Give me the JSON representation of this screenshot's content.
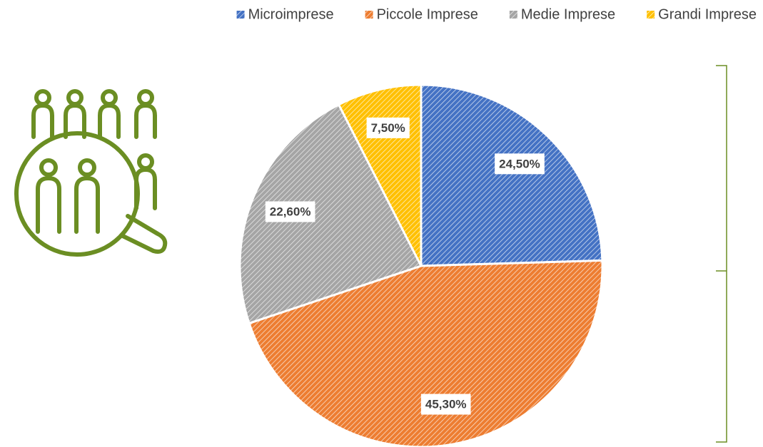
{
  "chart_data": {
    "type": "pie",
    "categories": [
      "Microimprese",
      "Piccole Imprese",
      "Medie Imprese",
      "Grandi Imprese"
    ],
    "values": [
      24.5,
      45.3,
      22.6,
      7.5
    ],
    "value_labels": [
      "24,50%",
      "45,30%",
      "22,60%",
      "7,50%"
    ],
    "colors": [
      "#4472c4",
      "#ed7d31",
      "#a5a5a5",
      "#ffc000"
    ],
    "legend": "top"
  }
}
